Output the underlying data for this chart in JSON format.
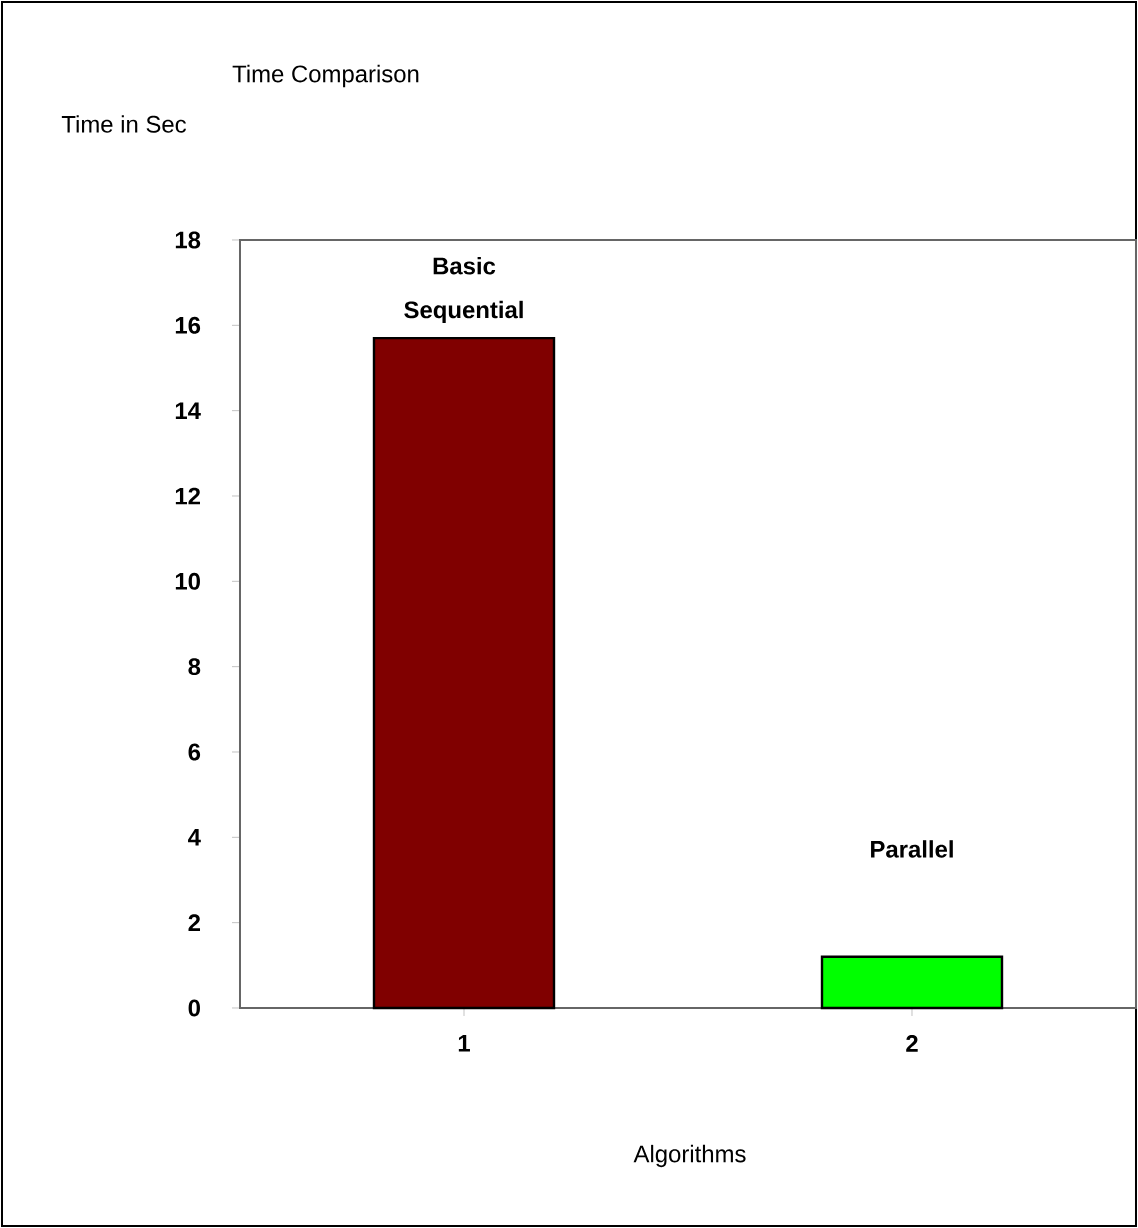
{
  "chart_data": {
    "type": "bar",
    "title": "Time Comparison",
    "xlabel": "Algorithms",
    "ylabel": "Time in Sec",
    "categories": [
      "1",
      "2"
    ],
    "values": [
      15.7,
      1.2
    ],
    "colors": [
      "#800000",
      "#00ff00"
    ],
    "ylim": [
      0,
      18
    ],
    "yticks": [
      0,
      2,
      4,
      6,
      8,
      10,
      12,
      14,
      16,
      18
    ],
    "grid": false,
    "annotations": [
      "Basic Sequential",
      "Parallel"
    ]
  }
}
